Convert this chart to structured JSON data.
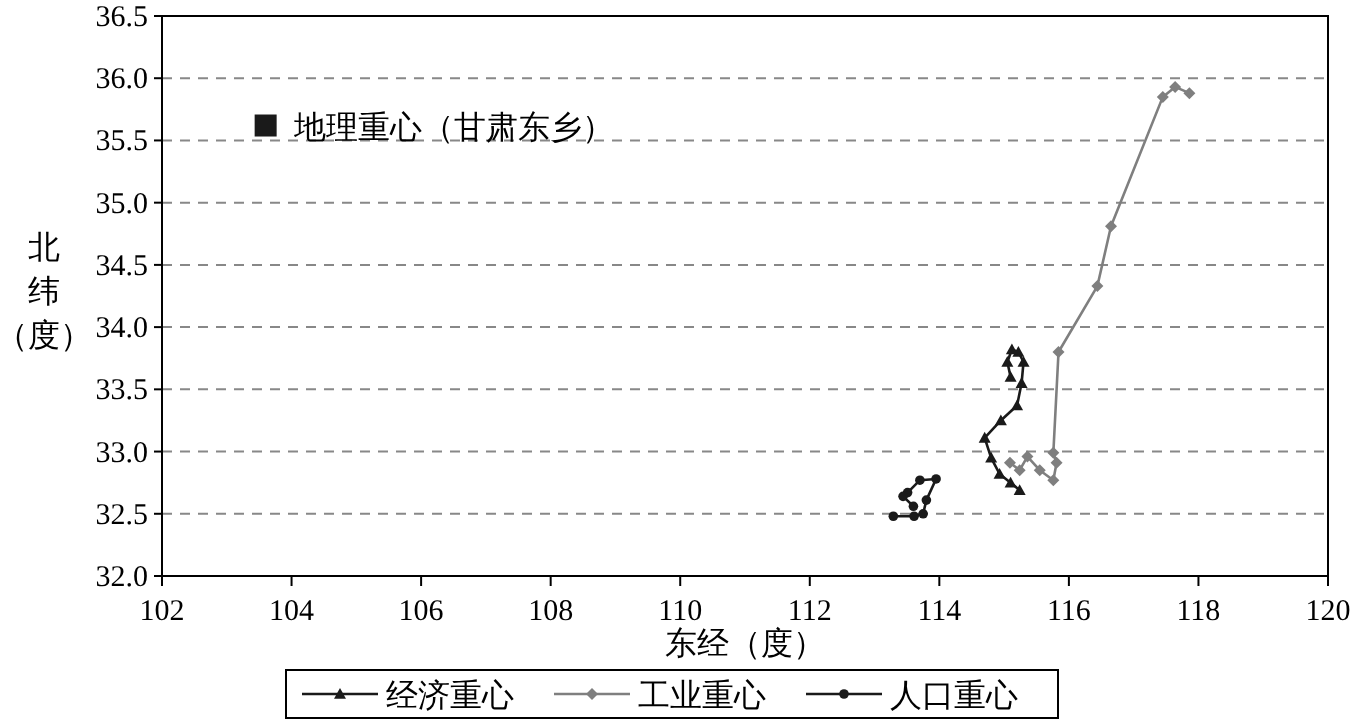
{
  "chart_data": {
    "type": "line",
    "xlabel": "东经（度）",
    "ylabel": "北纬（度）",
    "xlim": [
      102,
      120
    ],
    "ylim": [
      32.0,
      36.5
    ],
    "xticks": [
      102,
      104,
      106,
      108,
      110,
      112,
      114,
      116,
      118,
      120
    ],
    "yticks": [
      {
        "value": 32.0,
        "label": "32.0"
      },
      {
        "value": 32.5,
        "label": "32.5"
      },
      {
        "value": 33.0,
        "label": "33.0"
      },
      {
        "value": 33.5,
        "label": "33.5"
      },
      {
        "value": 34.0,
        "label": "34.0"
      },
      {
        "value": 34.5,
        "label": "34.5"
      },
      {
        "value": 35.0,
        "label": "35.0"
      },
      {
        "value": 35.5,
        "label": "35.5"
      },
      {
        "value": 36.0,
        "label": "36.0"
      },
      {
        "value": 36.5,
        "label": "36.5"
      }
    ],
    "grid": "y",
    "legend": "bottom",
    "line_style": "solid",
    "series": [
      {
        "name": "经济重心",
        "color": "#1a1a1a",
        "marker": "triangle",
        "x": [
          115.24,
          115.1,
          114.93,
          114.8,
          114.7,
          114.95,
          115.2,
          115.27,
          115.3,
          115.22,
          115.12,
          115.05,
          115.1
        ],
        "values": [
          32.69,
          32.75,
          32.82,
          32.95,
          33.11,
          33.25,
          33.37,
          33.55,
          33.72,
          33.8,
          33.82,
          33.72,
          33.6
        ]
      },
      {
        "name": "工业重心",
        "color": "#7f7f7f",
        "marker": "diamond",
        "x": [
          115.09,
          115.24,
          115.36,
          115.55,
          115.76,
          115.81,
          115.76,
          115.84,
          116.44,
          116.65,
          117.45,
          117.64,
          117.86
        ],
        "values": [
          32.91,
          32.85,
          32.96,
          32.85,
          32.77,
          32.91,
          32.99,
          33.8,
          34.33,
          34.81,
          35.85,
          35.93,
          35.88
        ]
      },
      {
        "name": "人口重心",
        "color": "#1a1a1a",
        "marker": "circle",
        "x": [
          113.29,
          113.61,
          113.75,
          113.8,
          113.95,
          113.7,
          113.51,
          113.44,
          113.6
        ],
        "values": [
          32.48,
          32.48,
          32.5,
          32.61,
          32.78,
          32.77,
          32.67,
          32.64,
          32.56
        ]
      },
      {
        "type": "scatter",
        "color": "#1a1a1a",
        "marker": "square",
        "x": [
          103.6
        ],
        "values": [
          35.62
        ]
      }
    ],
    "annotations": [
      {
        "text": "地理重心（甘肃东乡）",
        "x": 103.6,
        "y": 35.62
      }
    ]
  }
}
